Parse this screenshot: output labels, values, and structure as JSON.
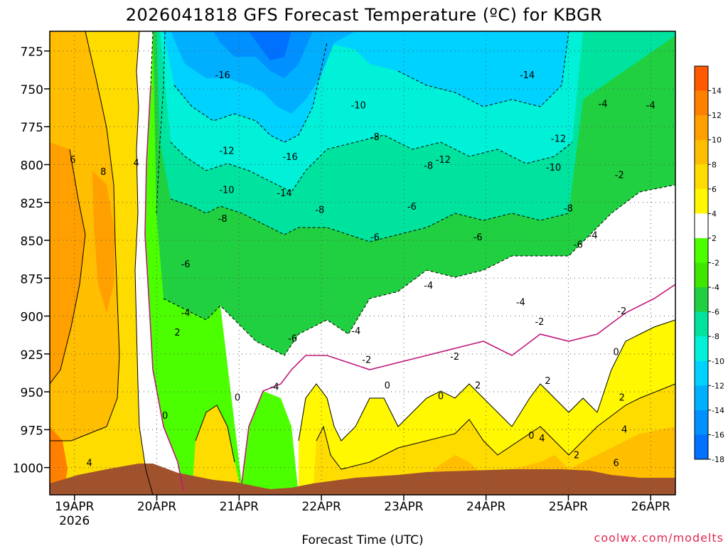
{
  "chart_data": {
    "type": "heatmap",
    "title": "2026041818 GFS Forecast Temperature (ºC) for KBGR",
    "xlabel": "Forecast Time (UTC)",
    "ylabel": "",
    "credit": "coolwx.com/modelts",
    "x_ticks": [
      {
        "label": "19APR",
        "sub": "2026",
        "t": 0.3
      },
      {
        "label": "20APR",
        "sub": "",
        "t": 1.3
      },
      {
        "label": "21APR",
        "sub": "",
        "t": 2.3
      },
      {
        "label": "22APR",
        "sub": "",
        "t": 3.3
      },
      {
        "label": "23APR",
        "sub": "",
        "t": 4.3
      },
      {
        "label": "24APR",
        "sub": "",
        "t": 5.3
      },
      {
        "label": "25APR",
        "sub": "",
        "t": 6.3
      },
      {
        "label": "26APR",
        "sub": "",
        "t": 7.3
      }
    ],
    "x_range_days": [
      0.0,
      7.6
    ],
    "y_ticks": [
      725,
      750,
      775,
      800,
      825,
      850,
      875,
      900,
      925,
      950,
      975,
      1000
    ],
    "ylim_hpa": [
      712,
      1018
    ],
    "y_inverted": true,
    "colorbar": {
      "levels": [
        -20,
        -18,
        -16,
        -14,
        -12,
        -10,
        -8,
        -6,
        -4,
        -2,
        2,
        4,
        6,
        8,
        10,
        12,
        14,
        16
      ],
      "labels": [
        "14",
        "12",
        "10",
        "8",
        "6",
        "4",
        "2",
        "-2",
        "-4",
        "-6",
        "-8",
        "-10",
        "-12",
        "-14",
        "-16",
        "-18"
      ],
      "colors_top_to_bottom": [
        "#ff5a00",
        "#ff7f00",
        "#ffa000",
        "#ffbe00",
        "#ffdc00",
        "#fff800",
        "#ffffff",
        "#4cff00",
        "#3ee600",
        "#20d040",
        "#00e39e",
        "#00f0d8",
        "#00d2ff",
        "#00b0ff",
        "#0090ff",
        "#0070ff"
      ]
    },
    "contour_labels": [
      {
        "text": "6",
        "t": 0.28,
        "p": 797
      },
      {
        "text": "8",
        "t": 0.65,
        "p": 805
      },
      {
        "text": "4",
        "t": 1.05,
        "p": 799
      },
      {
        "text": "4",
        "t": 0.48,
        "p": 997
      },
      {
        "text": "0",
        "t": 1.4,
        "p": 966
      },
      {
        "text": "0",
        "t": 2.28,
        "p": 954
      },
      {
        "text": "2",
        "t": 1.55,
        "p": 911
      },
      {
        "text": "-16",
        "t": 2.1,
        "p": 741
      },
      {
        "text": "-12",
        "t": 2.15,
        "p": 791
      },
      {
        "text": "-10",
        "t": 2.15,
        "p": 817
      },
      {
        "text": "-8",
        "t": 2.1,
        "p": 836
      },
      {
        "text": "-6",
        "t": 1.65,
        "p": 866
      },
      {
        "text": "-4",
        "t": 1.65,
        "p": 898
      },
      {
        "text": "-16",
        "t": 2.92,
        "p": 795
      },
      {
        "text": "-14",
        "t": 2.85,
        "p": 819
      },
      {
        "text": "-6",
        "t": 2.95,
        "p": 915
      },
      {
        "text": "-4",
        "t": 2.73,
        "p": 947
      },
      {
        "text": "-8",
        "t": 3.28,
        "p": 830
      },
      {
        "text": "-10",
        "t": 3.75,
        "p": 761
      },
      {
        "text": "-8",
        "t": 3.95,
        "p": 782
      },
      {
        "text": "-6",
        "t": 3.95,
        "p": 848
      },
      {
        "text": "-4",
        "t": 3.72,
        "p": 910
      },
      {
        "text": "-2",
        "t": 3.85,
        "p": 929
      },
      {
        "text": "0",
        "t": 4.1,
        "p": 946
      },
      {
        "text": "-6",
        "t": 4.4,
        "p": 828
      },
      {
        "text": "-8",
        "t": 4.6,
        "p": 801
      },
      {
        "text": "-12",
        "t": 4.78,
        "p": 797
      },
      {
        "text": "-4",
        "t": 4.6,
        "p": 880
      },
      {
        "text": "-2",
        "t": 4.92,
        "p": 927
      },
      {
        "text": "0",
        "t": 4.75,
        "p": 953
      },
      {
        "text": "2",
        "t": 5.2,
        "p": 946
      },
      {
        "text": "-6",
        "t": 5.2,
        "p": 848
      },
      {
        "text": "-14",
        "t": 5.8,
        "p": 741
      },
      {
        "text": "-12",
        "t": 6.18,
        "p": 783
      },
      {
        "text": "-10",
        "t": 6.12,
        "p": 802
      },
      {
        "text": "-8",
        "t": 6.3,
        "p": 829
      },
      {
        "text": "-4",
        "t": 5.72,
        "p": 891
      },
      {
        "text": "-2",
        "t": 5.95,
        "p": 904
      },
      {
        "text": "2",
        "t": 6.05,
        "p": 943
      },
      {
        "text": "0",
        "t": 5.85,
        "p": 979
      },
      {
        "text": "4",
        "t": 5.98,
        "p": 981
      },
      {
        "text": "2",
        "t": 6.4,
        "p": 992
      },
      {
        "text": "-6",
        "t": 6.42,
        "p": 853
      },
      {
        "text": "-4",
        "t": 6.6,
        "p": 847
      },
      {
        "text": "-4",
        "t": 6.72,
        "p": 760
      },
      {
        "text": "-4",
        "t": 7.3,
        "p": 761
      },
      {
        "text": "-2",
        "t": 6.92,
        "p": 807
      },
      {
        "text": "-2",
        "t": 6.95,
        "p": 897
      },
      {
        "text": "0",
        "t": 6.88,
        "p": 924
      },
      {
        "text": "2",
        "t": 6.95,
        "p": 954
      },
      {
        "text": "4",
        "t": 6.98,
        "p": 975
      },
      {
        "text": "6",
        "t": 6.88,
        "p": 997
      }
    ]
  }
}
